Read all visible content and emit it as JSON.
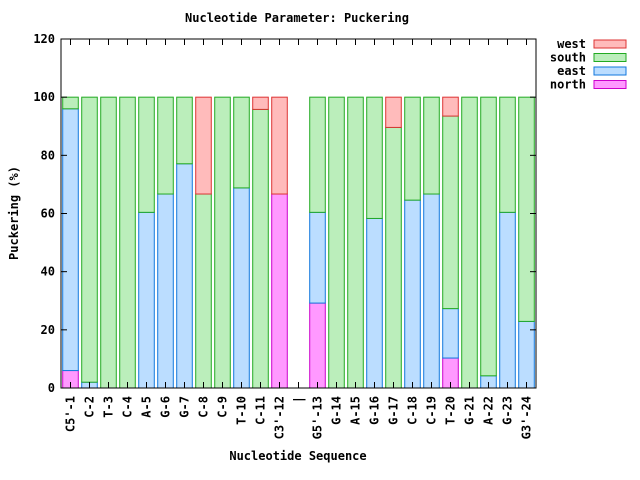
{
  "chart_data": {
    "type": "bar",
    "stacked": true,
    "title": "Nucleotide Parameter: Puckering",
    "xlabel": "Nucleotide Sequence",
    "ylabel": "Puckering (%)",
    "ylim": [
      0,
      120
    ],
    "yticks": [
      0,
      20,
      40,
      60,
      80,
      100,
      120
    ],
    "grid": false,
    "legend_position": "top-right outside",
    "categories": [
      "C5'-1",
      "C-2",
      "T-3",
      "C-4",
      "A-5",
      "G-6",
      "G-7",
      "C-8",
      "C-9",
      "T-10",
      "C-11",
      "C3'-12",
      "|",
      "G5'-13",
      "G-14",
      "A-15",
      "G-16",
      "G-17",
      "C-18",
      "C-19",
      "T-20",
      "G-21",
      "A-22",
      "G-23",
      "G3'-24"
    ],
    "series": [
      {
        "name": "north",
        "color": "#ff99ff",
        "stroke": "#cc00cc",
        "values": [
          6,
          0,
          0,
          0,
          0,
          0,
          0,
          0,
          0,
          0,
          0,
          66.7,
          null,
          29.2,
          0,
          0,
          0,
          0,
          0,
          0,
          10.3,
          0,
          0,
          0,
          0
        ]
      },
      {
        "name": "east",
        "color": "#bbddff",
        "stroke": "#1177dd",
        "values": [
          90,
          2,
          0,
          0,
          60.4,
          66.7,
          77.1,
          0,
          0,
          68.8,
          0,
          0,
          null,
          31.2,
          0,
          0,
          58.3,
          0,
          64.6,
          66.7,
          17,
          0,
          4.2,
          60.4,
          22.9
        ]
      },
      {
        "name": "south",
        "color": "#bbeebb",
        "stroke": "#22aa22",
        "values": [
          4,
          98,
          100,
          100,
          39.6,
          33.3,
          22.9,
          66.7,
          100,
          31.2,
          95.8,
          0,
          null,
          39.6,
          100,
          100,
          41.7,
          89.6,
          35.4,
          33.3,
          66.2,
          100,
          95.8,
          39.6,
          77.1
        ]
      },
      {
        "name": "west",
        "color": "#ffbbbb",
        "stroke": "#dd3333",
        "values": [
          0,
          0,
          0,
          0,
          0,
          0,
          0,
          33.3,
          0,
          0,
          4.2,
          33.3,
          null,
          0,
          0,
          0,
          0,
          10.4,
          0,
          0,
          6.5,
          0,
          0,
          0,
          0
        ]
      }
    ],
    "legend_order": [
      "west",
      "south",
      "east",
      "north"
    ]
  }
}
